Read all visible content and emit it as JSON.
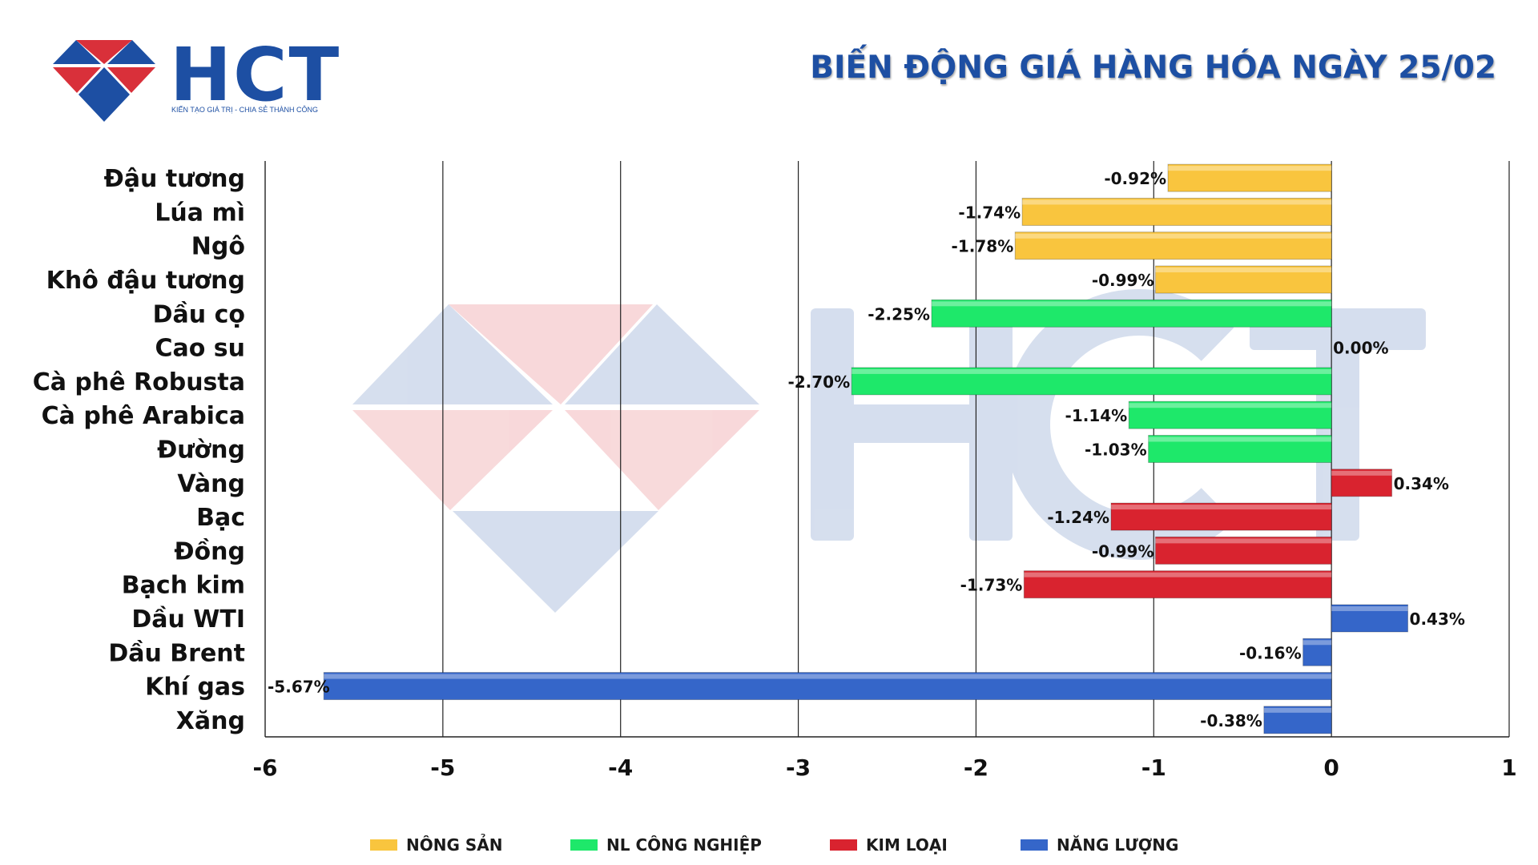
{
  "brand": {
    "name": "HCT",
    "tagline": "KIẾN TẠO GIÁ TRỊ - CHIA SẺ THÀNH CÔNG"
  },
  "header": {
    "title": "BIẾN ĐỘNG GIÁ HÀNG HÓA NGÀY 25/02"
  },
  "colors": {
    "brand_blue": "#1d4fa3",
    "brand_red": "#d9303a",
    "nong_san": "#f9c53e",
    "nl_cong_nghiep": "#1ee86a",
    "kim_loai": "#d9232f",
    "nang_luong": "#3566c9"
  },
  "chart_data": {
    "type": "bar",
    "orientation": "horizontal",
    "title": "BIẾN ĐỘNG GIÁ HÀNG HÓA NGÀY 25/02",
    "xlabel": "",
    "ylabel": "",
    "xlim": [
      -6,
      1
    ],
    "xticks": [
      "-6",
      "-5",
      "-4",
      "-3",
      "-2",
      "-1",
      "0",
      "1"
    ],
    "grid": "vertical",
    "legend_position": "bottom",
    "categories": [
      "Đậu tương",
      "Lúa mì",
      "Ngô",
      "Khô đậu tương",
      "Dầu cọ",
      "Cao su",
      "Cà phê Robusta",
      "Cà phê Arabica",
      "Đường",
      "Vàng",
      "Bạc",
      "Đồng",
      "Bạch kim",
      "Dầu WTI",
      "Dầu Brent",
      "Khí gas",
      "Xăng"
    ],
    "values": [
      -0.92,
      -1.74,
      -1.78,
      -0.99,
      -2.25,
      0.0,
      -2.7,
      -1.14,
      -1.03,
      0.34,
      -1.24,
      -0.99,
      -1.73,
      0.43,
      -0.16,
      -5.67,
      -0.38
    ],
    "labels": [
      "-0.92%",
      "-1.74%",
      "-1.78%",
      "-0.99%",
      "-2.25%",
      "0.00%",
      "-2.70%",
      "-1.14%",
      "-1.03%",
      "0.34%",
      "-1.24%",
      "-0.99%",
      "-1.73%",
      "0.43%",
      "-0.16%",
      "-5.67%",
      "-0.38%"
    ],
    "groups": [
      0,
      0,
      0,
      0,
      1,
      1,
      1,
      1,
      1,
      2,
      2,
      2,
      2,
      3,
      3,
      3,
      3
    ],
    "legend": [
      {
        "name": "NÔNG SẢN",
        "color": "#f9c53e"
      },
      {
        "name": "NL CÔNG NGHIỆP",
        "color": "#1ee86a"
      },
      {
        "name": "KIM LOẠI",
        "color": "#d9232f"
      },
      {
        "name": "NĂNG LƯỢNG",
        "color": "#3566c9"
      }
    ]
  }
}
